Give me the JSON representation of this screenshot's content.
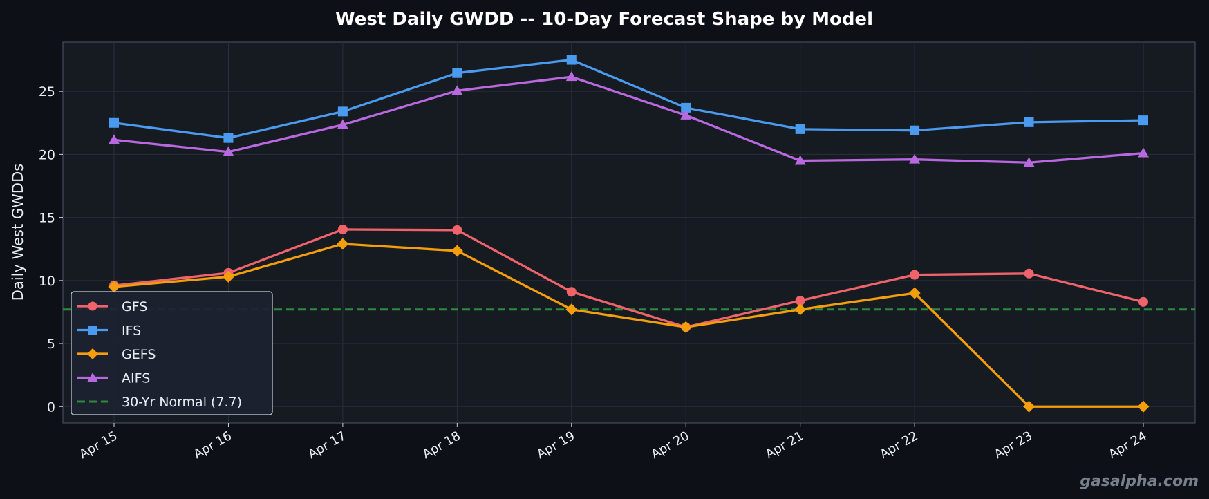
{
  "chart_data": {
    "type": "line",
    "title": "West Daily GWDD -- 10-Day Forecast Shape by Model",
    "xlabel": "",
    "ylabel": "Daily West GWDDs",
    "categories": [
      "Apr 15",
      "Apr 16",
      "Apr 17",
      "Apr 18",
      "Apr 19",
      "Apr 20",
      "Apr 21",
      "Apr 22",
      "Apr 23",
      "Apr 24"
    ],
    "ylim": [
      -1.3,
      28.9
    ],
    "yticks": [
      0,
      5,
      10,
      15,
      20,
      25
    ],
    "grid": true,
    "legend_position": "lower-left",
    "series": [
      {
        "name": "GFS",
        "color": "#f0636b",
        "marker": "circle",
        "values": [
          9.6,
          10.6,
          14.05,
          14.0,
          9.1,
          6.3,
          8.4,
          10.45,
          10.55,
          8.3
        ]
      },
      {
        "name": "IFS",
        "color": "#4a9af0",
        "marker": "square",
        "values": [
          22.5,
          21.3,
          23.4,
          26.45,
          27.5,
          23.7,
          22.0,
          21.9,
          22.55,
          22.7
        ]
      },
      {
        "name": "GEFS",
        "color": "#f59e0b",
        "marker": "diamond",
        "values": [
          9.5,
          10.3,
          12.9,
          12.35,
          7.7,
          6.3,
          7.7,
          9.0,
          0.0,
          0.0
        ]
      },
      {
        "name": "AIFS",
        "color": "#b968e0",
        "marker": "triangle",
        "values": [
          21.15,
          20.2,
          22.35,
          25.05,
          26.15,
          23.1,
          19.5,
          19.6,
          19.35,
          20.1
        ]
      }
    ],
    "reference_line": {
      "name": "30-Yr Normal (7.7)",
      "value": 7.7,
      "color": "#2e8b3e",
      "style": "dashed"
    }
  },
  "watermark": "gasalpha.com"
}
